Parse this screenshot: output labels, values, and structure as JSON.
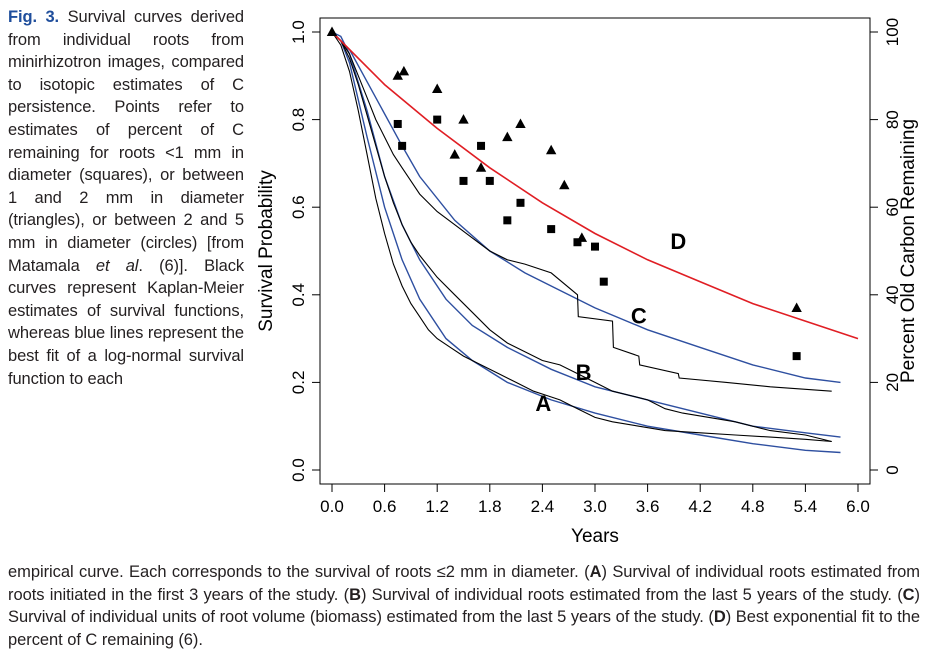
{
  "caption": {
    "fig_label": "Fig. 3.",
    "side_1": " Survival curves derived from individual roots from minirhizotron images, compared to isotopic estimates of C persistence. Points refer to estimates of percent of C remaining for roots <1 mm in diameter (squares), or between 1 and 2 mm in diameter (triangles), or between 2 and 5 mm in diameter (circles) [from Matamala ",
    "etal": "et al",
    "side_2": ". (6)]. Black curves represent Kaplan-Meier estimates of survival functions, whereas blue lines represent the best fit of a log-normal survival function to each",
    "bottom_1": "empirical curve. Each corresponds to the survival of roots ≤2 mm in diameter. (",
    "A": "A",
    "bottom_2": ") Survival of individual roots estimated from roots initiated in the first 3 years of the study. (",
    "B": "B",
    "bottom_3": ") Survival of individual roots estimated from the last 5 years of the study. (",
    "C": "C",
    "bottom_4": ") Survival of individual units of root volume (biomass) estimated from the last 5 years of the study. (",
    "D": "D",
    "bottom_5": ") Best exponential fit to the percent of C remaining (6)."
  },
  "chart_data": {
    "type": "line",
    "xlabel": "Years",
    "ylabel": "Survival Probability",
    "y2label": "Percent Old Carbon Remaining",
    "xlim": [
      0,
      6.0
    ],
    "ylim": [
      0,
      1.0
    ],
    "y2lim": [
      0,
      100
    ],
    "x_ticks": [
      "0.0",
      "0.6",
      "1.2",
      "1.8",
      "2.4",
      "3.0",
      "3.6",
      "4.2",
      "4.8",
      "5.4",
      "6.0"
    ],
    "y_ticks": [
      "0.0",
      "0.2",
      "0.4",
      "0.6",
      "0.8",
      "1.0"
    ],
    "y2_ticks": [
      "0",
      "20",
      "40",
      "60",
      "80",
      "100"
    ],
    "colors": {
      "km": "#000000",
      "lognormal": "#2e4fa0",
      "exponential": "#e01e24",
      "points": "#000000"
    },
    "curve_labels": [
      {
        "text": "A",
        "x": 2.41,
        "y": 0.135
      },
      {
        "text": "B",
        "x": 2.87,
        "y": 0.205
      },
      {
        "text": "C",
        "x": 3.5,
        "y": 0.335
      },
      {
        "text": "D",
        "x": 3.95,
        "y": 0.505
      }
    ],
    "km_series": [
      {
        "name": "A",
        "x": [
          0,
          0.1,
          0.2,
          0.3,
          0.4,
          0.5,
          0.6,
          0.7,
          0.8,
          0.9,
          1.0,
          1.1,
          1.2,
          1.35,
          1.5,
          1.7,
          1.9,
          2.1,
          2.3,
          2.45,
          2.6,
          2.8,
          3.0,
          3.2,
          3.5,
          3.8,
          4.2,
          4.6,
          5.0,
          5.4,
          5.7
        ],
        "y": [
          1.0,
          0.97,
          0.91,
          0.82,
          0.72,
          0.62,
          0.54,
          0.47,
          0.42,
          0.38,
          0.35,
          0.32,
          0.3,
          0.28,
          0.26,
          0.24,
          0.22,
          0.2,
          0.18,
          0.17,
          0.16,
          0.14,
          0.12,
          0.11,
          0.1,
          0.09,
          0.085,
          0.08,
          0.075,
          0.07,
          0.065
        ]
      },
      {
        "name": "B",
        "x": [
          0,
          0.1,
          0.2,
          0.3,
          0.4,
          0.5,
          0.6,
          0.7,
          0.8,
          0.9,
          1.0,
          1.2,
          1.4,
          1.6,
          1.8,
          2.0,
          2.2,
          2.4,
          2.6,
          2.8,
          3.0,
          3.2,
          3.4,
          3.6,
          3.8,
          4.0,
          4.3,
          4.6,
          5.0,
          5.4,
          5.7
        ],
        "y": [
          1.0,
          0.98,
          0.94,
          0.88,
          0.81,
          0.74,
          0.67,
          0.61,
          0.56,
          0.52,
          0.49,
          0.44,
          0.4,
          0.36,
          0.32,
          0.29,
          0.27,
          0.25,
          0.24,
          0.22,
          0.2,
          0.18,
          0.17,
          0.16,
          0.14,
          0.13,
          0.12,
          0.11,
          0.09,
          0.08,
          0.065
        ]
      },
      {
        "name": "C",
        "x": [
          0,
          0.1,
          0.2,
          0.3,
          0.4,
          0.5,
          0.6,
          0.7,
          0.8,
          0.9,
          1.0,
          1.2,
          1.4,
          1.6,
          1.8,
          2.0,
          2.2,
          2.5,
          2.8,
          2.81,
          3.2,
          3.21,
          3.5,
          3.51,
          3.95,
          3.96,
          4.5,
          5.0,
          5.7
        ],
        "y": [
          1.0,
          0.98,
          0.95,
          0.9,
          0.85,
          0.8,
          0.76,
          0.72,
          0.69,
          0.66,
          0.63,
          0.59,
          0.56,
          0.53,
          0.5,
          0.48,
          0.47,
          0.45,
          0.4,
          0.35,
          0.34,
          0.28,
          0.26,
          0.24,
          0.22,
          0.21,
          0.2,
          0.19,
          0.18
        ]
      }
    ],
    "lognormal_series": [
      {
        "name": "A",
        "x": [
          0,
          0.1,
          0.2,
          0.4,
          0.6,
          0.8,
          1.0,
          1.3,
          1.6,
          2.0,
          2.5,
          3.0,
          3.6,
          4.2,
          4.8,
          5.4,
          5.8
        ],
        "y": [
          1.0,
          0.98,
          0.93,
          0.76,
          0.6,
          0.48,
          0.39,
          0.3,
          0.25,
          0.2,
          0.16,
          0.13,
          0.1,
          0.08,
          0.06,
          0.045,
          0.04
        ]
      },
      {
        "name": "B",
        "x": [
          0,
          0.1,
          0.2,
          0.4,
          0.6,
          0.8,
          1.0,
          1.3,
          1.6,
          2.0,
          2.5,
          3.0,
          3.6,
          4.2,
          4.8,
          5.4,
          5.8
        ],
        "y": [
          1.0,
          0.99,
          0.95,
          0.82,
          0.67,
          0.56,
          0.48,
          0.39,
          0.33,
          0.28,
          0.23,
          0.19,
          0.16,
          0.13,
          0.1,
          0.085,
          0.075
        ]
      },
      {
        "name": "C",
        "x": [
          0,
          0.2,
          0.5,
          0.8,
          1.0,
          1.4,
          1.8,
          2.2,
          2.6,
          3.0,
          3.6,
          4.2,
          4.8,
          5.4,
          5.8
        ],
        "y": [
          1.0,
          0.96,
          0.85,
          0.74,
          0.67,
          0.57,
          0.5,
          0.45,
          0.41,
          0.37,
          0.32,
          0.28,
          0.24,
          0.21,
          0.2
        ]
      }
    ],
    "exponential_fit": {
      "name": "D",
      "x": [
        0,
        0.6,
        1.2,
        1.8,
        2.4,
        3.0,
        3.6,
        4.2,
        4.8,
        5.4,
        6.0
      ],
      "y": [
        1.0,
        0.88,
        0.78,
        0.69,
        0.61,
        0.54,
        0.48,
        0.43,
        0.38,
        0.34,
        0.3
      ]
    },
    "points": {
      "squares": {
        "x": [
          0.75,
          0.8,
          1.2,
          1.5,
          1.7,
          1.8,
          2.0,
          2.15,
          2.5,
          2.8,
          3.0,
          3.1,
          5.3
        ],
        "y": [
          0.79,
          0.74,
          0.8,
          0.66,
          0.74,
          0.66,
          0.57,
          0.61,
          0.55,
          0.52,
          0.51,
          0.43,
          0.26
        ]
      },
      "triangles": {
        "x": [
          0.0,
          0.75,
          0.82,
          1.2,
          1.4,
          1.5,
          1.7,
          2.0,
          2.15,
          2.5,
          2.65,
          2.85,
          5.3
        ],
        "y": [
          1.0,
          0.9,
          0.91,
          0.87,
          0.72,
          0.8,
          0.69,
          0.76,
          0.79,
          0.73,
          0.65,
          0.53,
          0.37
        ]
      }
    }
  }
}
